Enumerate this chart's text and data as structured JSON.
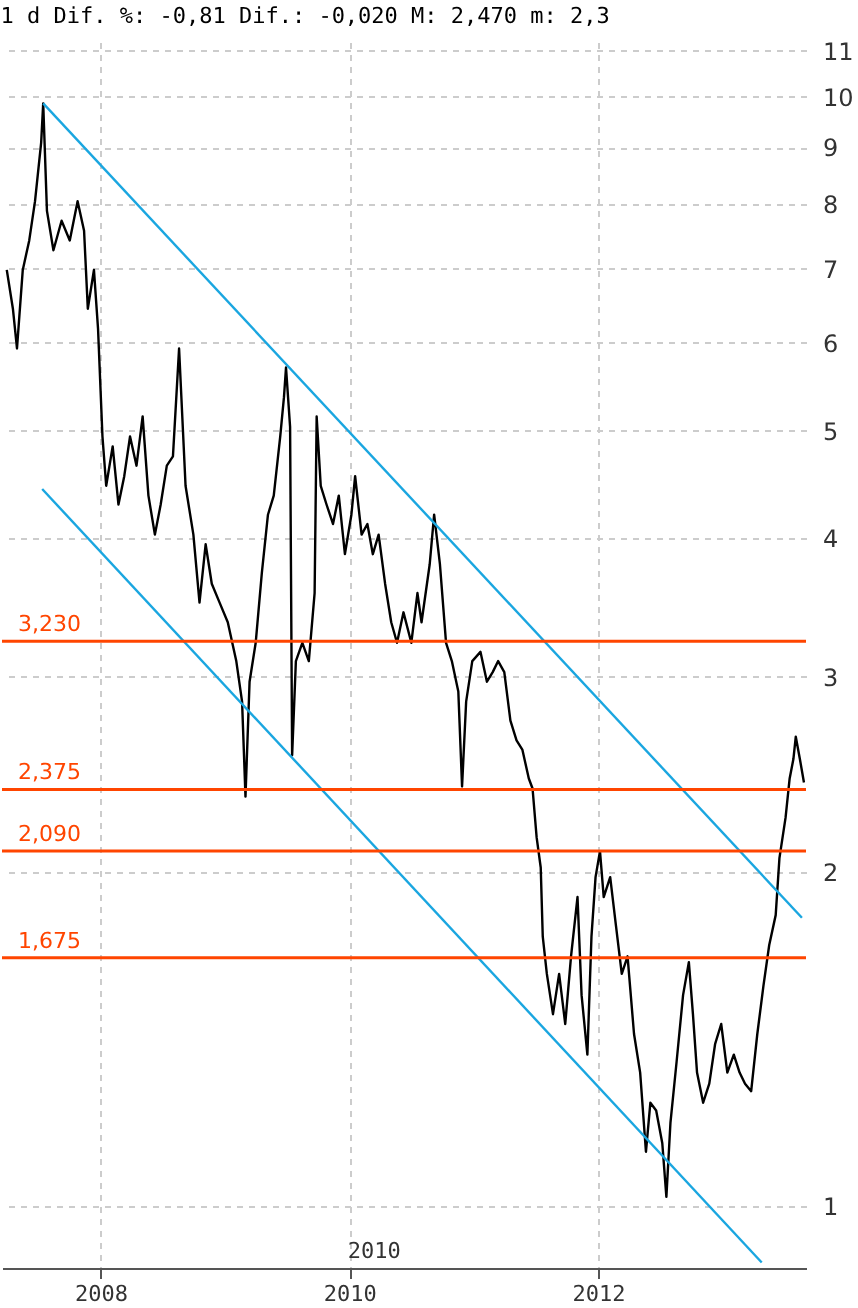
{
  "chart_data": {
    "type": "line",
    "title": "1 d Dif. %: -0,81 Dif.: -0,020 M: 2,470 m: 2,3",
    "log": "y",
    "grid": true,
    "xlim": [
      "2007-03-18",
      "2013-09-03"
    ],
    "xticks": [
      {
        "value": "2008-01-01",
        "label": "2008"
      },
      {
        "value": "2010-01-01",
        "label": "2010"
      },
      {
        "value": "2012-01-01",
        "label": "2012"
      }
    ],
    "ylim": [
      0.88,
      11.2
    ],
    "yticks": [
      1,
      2,
      3,
      4,
      5,
      6,
      7,
      8,
      9,
      10,
      11
    ],
    "x": [
      "2007-04-01",
      "2007-04-19",
      "2007-05-01",
      "2007-05-18",
      "2007-06-06",
      "2007-06-23",
      "2007-07-11",
      "2007-07-17",
      "2007-07-28",
      "2007-08-16",
      "2007-09-09",
      "2007-10-03",
      "2007-10-26",
      "2007-11-14",
      "2007-11-25",
      "2007-12-13",
      "2007-12-25",
      "2008-01-07",
      "2008-01-18",
      "2008-02-06",
      "2008-02-23",
      "2008-03-11",
      "2008-03-28",
      "2008-04-16",
      "2008-05-04",
      "2008-05-21",
      "2008-06-09",
      "2008-06-26",
      "2008-07-14",
      "2008-08-01",
      "2008-08-19",
      "2008-09-07",
      "2008-09-30",
      "2008-10-18",
      "2008-11-05",
      "2008-11-23",
      "2008-12-16",
      "2009-01-09",
      "2009-02-03",
      "2009-02-20",
      "2009-03-02",
      "2009-03-14",
      "2009-04-01",
      "2009-04-19",
      "2009-05-07",
      "2009-05-24",
      "2009-06-12",
      "2009-06-23",
      "2009-06-29",
      "2009-07-11",
      "2009-07-17",
      "2009-07-28",
      "2009-08-16",
      "2009-09-04",
      "2009-09-21",
      "2009-09-27",
      "2009-10-09",
      "2009-10-26",
      "2009-11-14",
      "2009-12-01",
      "2009-12-19",
      "2010-01-07",
      "2010-01-18",
      "2010-02-06",
      "2010-02-23",
      "2010-03-11",
      "2010-03-28",
      "2010-04-16",
      "2010-05-04",
      "2010-05-21",
      "2010-06-09",
      "2010-07-02",
      "2010-07-20",
      "2010-08-01",
      "2010-08-25",
      "2010-09-07",
      "2010-09-24",
      "2010-10-12",
      "2010-10-29",
      "2010-11-17",
      "2010-11-28",
      "2010-12-10",
      "2010-12-28",
      "2011-01-21",
      "2011-02-09",
      "2011-02-26",
      "2011-03-14",
      "2011-04-01",
      "2011-04-19",
      "2011-05-07",
      "2011-05-24",
      "2011-06-12",
      "2011-06-23",
      "2011-07-05",
      "2011-07-17",
      "2011-07-23",
      "2011-08-04",
      "2011-08-22",
      "2011-09-09",
      "2011-09-27",
      "2011-10-14",
      "2011-11-02",
      "2011-11-14",
      "2011-12-01",
      "2011-12-13",
      "2011-12-25",
      "2012-01-07",
      "2012-01-18",
      "2012-02-06",
      "2012-02-23",
      "2012-03-11",
      "2012-03-28",
      "2012-04-16",
      "2012-05-04",
      "2012-05-21",
      "2012-06-03",
      "2012-06-20",
      "2012-07-08",
      "2012-07-20",
      "2012-08-01",
      "2012-08-19",
      "2012-09-07",
      "2012-09-24",
      "2012-10-06",
      "2012-10-18",
      "2012-11-05",
      "2012-11-23",
      "2012-12-10",
      "2012-12-28",
      "2013-01-15",
      "2013-02-03",
      "2013-02-20",
      "2013-03-08",
      "2013-03-26",
      "2013-04-13",
      "2013-05-01",
      "2013-05-18",
      "2013-06-06",
      "2013-06-17",
      "2013-07-05",
      "2013-07-17",
      "2013-07-28",
      "2013-08-04",
      "2013-08-16",
      "2013-08-28"
    ],
    "series": [
      {
        "color": "#000000",
        "values": [
          6.98,
          6.44,
          5.93,
          6.98,
          7.42,
          8.05,
          9.09,
          9.86,
          7.89,
          7.27,
          7.73,
          7.42,
          8.05,
          7.57,
          6.44,
          6.98,
          6.18,
          4.94,
          4.46,
          4.84,
          4.29,
          4.55,
          4.94,
          4.65,
          5.15,
          4.37,
          4.03,
          4.29,
          4.65,
          4.74,
          5.93,
          4.46,
          4.03,
          3.5,
          3.95,
          3.64,
          3.5,
          3.36,
          3.1,
          2.85,
          2.34,
          2.97,
          3.22,
          3.72,
          4.2,
          4.37,
          4.94,
          5.36,
          5.7,
          5.04,
          2.55,
          3.1,
          3.22,
          3.1,
          3.57,
          5.15,
          4.46,
          4.29,
          4.12,
          4.37,
          3.87,
          4.2,
          4.55,
          4.03,
          4.12,
          3.87,
          4.03,
          3.64,
          3.36,
          3.22,
          3.43,
          3.22,
          3.57,
          3.36,
          3.79,
          4.2,
          3.79,
          3.22,
          3.1,
          2.91,
          2.39,
          2.85,
          3.1,
          3.16,
          2.97,
          3.03,
          3.1,
          3.03,
          2.74,
          2.63,
          2.58,
          2.43,
          2.38,
          2.15,
          2.02,
          1.75,
          1.62,
          1.49,
          1.62,
          1.46,
          1.68,
          1.9,
          1.55,
          1.37,
          1.75,
          1.98,
          2.09,
          1.9,
          1.98,
          1.79,
          1.62,
          1.68,
          1.43,
          1.32,
          1.12,
          1.24,
          1.22,
          1.14,
          1.02,
          1.19,
          1.35,
          1.55,
          1.66,
          1.49,
          1.32,
          1.24,
          1.29,
          1.4,
          1.46,
          1.32,
          1.37,
          1.32,
          1.29,
          1.27,
          1.43,
          1.58,
          1.72,
          1.83,
          2.06,
          2.24,
          2.43,
          2.53,
          2.65,
          2.53,
          2.41
        ]
      },
      {
        "type": "line",
        "color": "#1aa6e0",
        "x": [
          "2007-07-17",
          "2013-08-22"
        ],
        "values": [
          9.86,
          1.82
        ]
      },
      {
        "type": "line",
        "color": "#1aa6e0",
        "x": [
          "2007-07-14",
          "2013-04-26"
        ],
        "values": [
          4.43,
          0.89
        ]
      }
    ],
    "ref_lines": [
      {
        "axis": "y",
        "value": 3.23,
        "label": "3,230",
        "color": "#ff4500"
      },
      {
        "axis": "y",
        "value": 2.375,
        "label": "2,375",
        "color": "#ff4500"
      },
      {
        "axis": "y",
        "value": 2.09,
        "label": "2,090",
        "color": "#ff4500"
      },
      {
        "axis": "y",
        "value": 1.675,
        "label": "1,675",
        "color": "#ff4500"
      }
    ],
    "annotations": [
      "2010"
    ]
  }
}
